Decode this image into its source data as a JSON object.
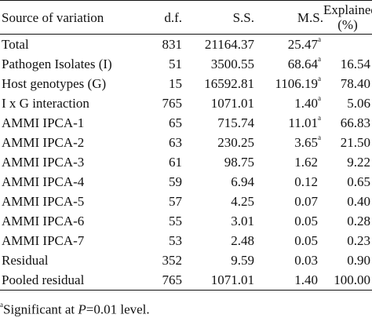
{
  "table": {
    "headers": {
      "source": "Source of variation",
      "df": "d.f.",
      "ss": "S.S.",
      "ms": "M.S.",
      "explained_line1": "Explained",
      "explained_line2": "(%)"
    },
    "rows": [
      {
        "source": "Total",
        "df": "831",
        "ss": "21164.37",
        "ms": "25.47",
        "ms_mark": "a",
        "explained": ""
      },
      {
        "source": "Pathogen Isolates (I)",
        "df": "51",
        "ss": "3500.55",
        "ms": "68.64",
        "ms_mark": "a",
        "explained": "16.54"
      },
      {
        "source": "Host genotypes (G)",
        "df": "15",
        "ss": "16592.81",
        "ms": "1106.19",
        "ms_mark": "a",
        "explained": "78.40"
      },
      {
        "source": "I x G interaction",
        "df": "765",
        "ss": "1071.01",
        "ms": "1.40",
        "ms_mark": "a",
        "explained": "5.06"
      },
      {
        "source": "AMMI IPCA-1",
        "df": "65",
        "ss": "715.74",
        "ms": "11.01",
        "ms_mark": "a",
        "explained": "66.83"
      },
      {
        "source": "AMMI IPCA-2",
        "df": "63",
        "ss": "230.25",
        "ms": "3.65",
        "ms_mark": "a",
        "explained": "21.50"
      },
      {
        "source": "AMMI IPCA-3",
        "df": "61",
        "ss": "98.75",
        "ms": "1.62",
        "ms_mark": "",
        "explained": "9.22"
      },
      {
        "source": "AMMI IPCA-4",
        "df": "59",
        "ss": "6.94",
        "ms": "0.12",
        "ms_mark": "",
        "explained": "0.65"
      },
      {
        "source": "AMMI IPCA-5",
        "df": "57",
        "ss": "4.25",
        "ms": "0.07",
        "ms_mark": "",
        "explained": "0.40"
      },
      {
        "source": "AMMI IPCA-6",
        "df": "55",
        "ss": "3.01",
        "ms": "0.05",
        "ms_mark": "",
        "explained": "0.28"
      },
      {
        "source": "AMMI IPCA-7",
        "df": "53",
        "ss": "2.48",
        "ms": "0.05",
        "ms_mark": "",
        "explained": "0.23"
      },
      {
        "source": "Residual",
        "df": "352",
        "ss": "9.59",
        "ms": "0.03",
        "ms_mark": "",
        "explained": "0.90"
      },
      {
        "source": "Pooled residual",
        "df": "765",
        "ss": "1071.01",
        "ms": "1.40",
        "ms_mark": "",
        "explained": "100.00"
      }
    ]
  },
  "footnote": {
    "mark": "a",
    "text_before": "Significant at ",
    "variable": "P",
    "text_after": "=0.01 level."
  }
}
